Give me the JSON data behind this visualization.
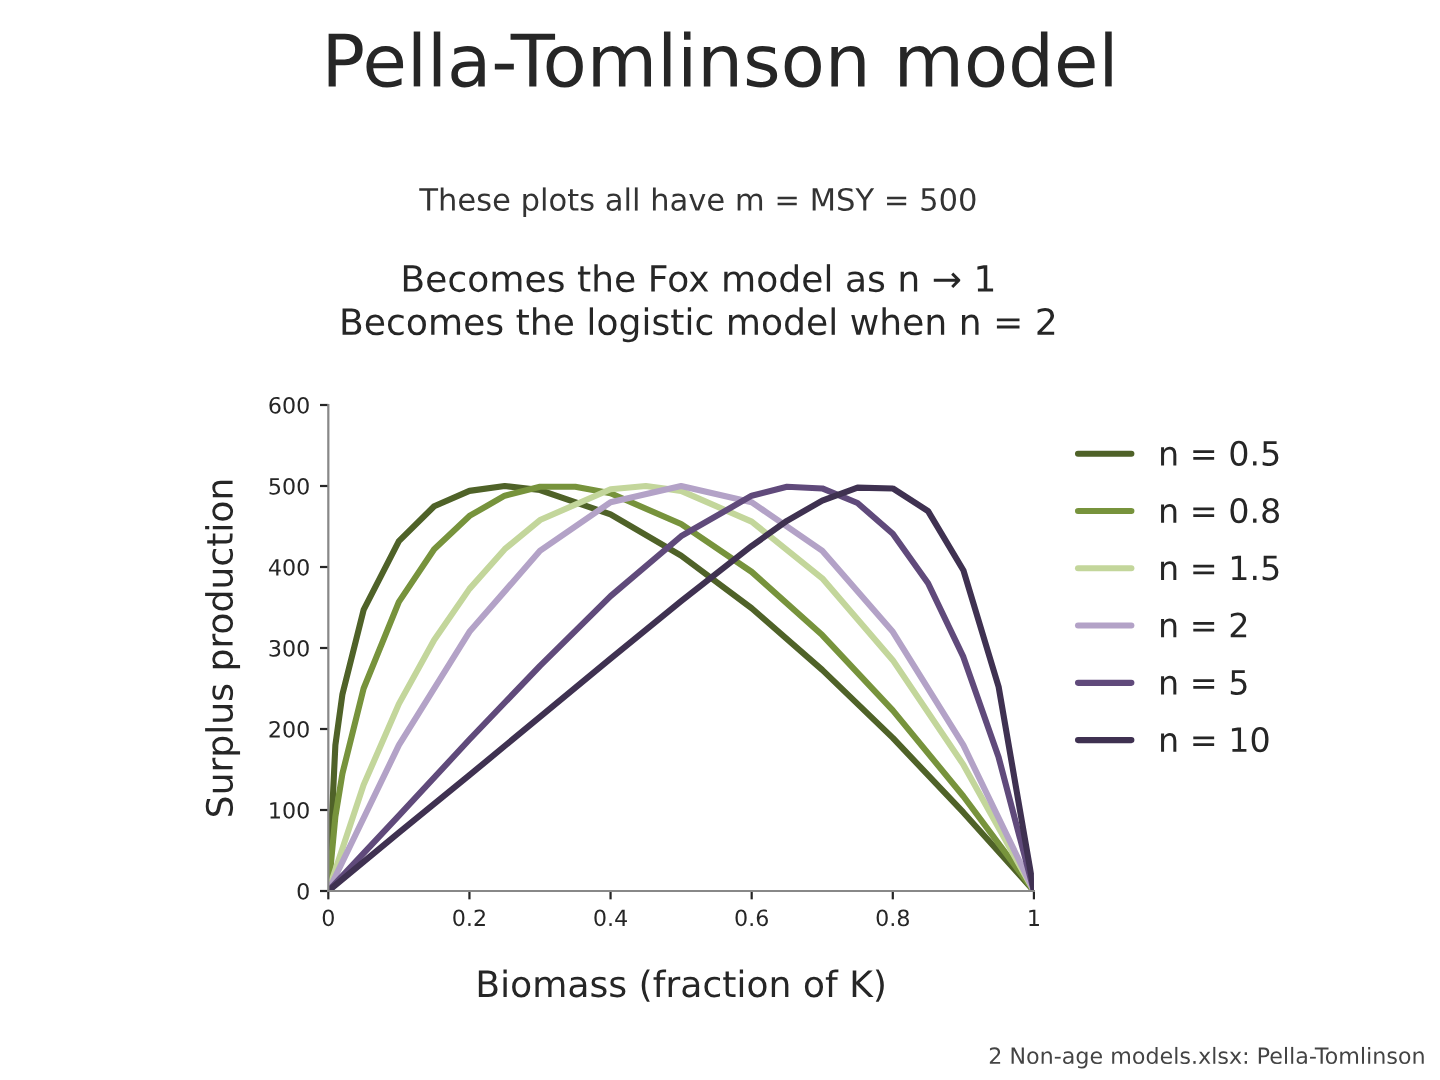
{
  "chart_data": {
    "type": "line",
    "title": "Pella-Tomlinson model",
    "subtitle": "These plots all have m = MSY = 500",
    "annotations": [
      "Becomes the Fox model as n → 1\nBecomes the logistic model when n = 2",
      "2 Non-age models.xlsx: Pella-Tomlinson"
    ],
    "xlabel": "Biomass (fraction of K)",
    "ylabel": "Surplus production",
    "xlim": [
      0,
      1
    ],
    "ylim": [
      0,
      600
    ],
    "xticks": [
      0,
      0.2,
      0.4,
      0.6,
      0.8,
      1
    ],
    "yticks": [
      0,
      100,
      200,
      300,
      400,
      500,
      600
    ],
    "grid": false,
    "legend": "right",
    "marker": "none",
    "line_style": "solid",
    "series": [
      {
        "name": "n = 0.5",
        "color": "#4f6228",
        "x": [
          0,
          0.01,
          0.02,
          0.05,
          0.1,
          0.15,
          0.2,
          0.25,
          0.3,
          0.4,
          0.5,
          0.6,
          0.7,
          0.8,
          0.9,
          1
        ],
        "values": [
          0,
          180,
          243,
          347,
          432,
          475,
          494,
          500,
          495,
          465,
          414,
          349,
          273,
          189,
          97,
          0
        ]
      },
      {
        "name": "n = 0.8",
        "color": "#77933c",
        "x": [
          0,
          0.01,
          0.02,
          0.05,
          0.1,
          0.15,
          0.2,
          0.25,
          0.3,
          0.35,
          0.4,
          0.5,
          0.6,
          0.7,
          0.8,
          0.9,
          1
        ],
        "values": [
          0,
          92,
          145,
          250,
          357,
          422,
          463,
          488,
          499,
          499,
          491,
          453,
          394,
          316,
          223,
          117,
          0
        ]
      },
      {
        "name": "n = 1.5",
        "color": "#c3d69b",
        "x": [
          0,
          0.05,
          0.1,
          0.15,
          0.2,
          0.25,
          0.3,
          0.4,
          0.45,
          0.5,
          0.6,
          0.7,
          0.8,
          0.9,
          1
        ],
        "values": [
          0,
          131,
          231,
          310,
          373,
          422,
          458,
          496,
          500,
          494,
          456,
          386,
          285,
          156,
          0
        ]
      },
      {
        "name": "n = 2",
        "color": "#b3a2c7",
        "x": [
          0,
          0.1,
          0.2,
          0.3,
          0.4,
          0.5,
          0.6,
          0.7,
          0.8,
          0.9,
          1
        ],
        "values": [
          0,
          180,
          320,
          420,
          480,
          500,
          480,
          420,
          320,
          180,
          0
        ]
      },
      {
        "name": "n = 5",
        "color": "#604a7b",
        "x": [
          0,
          0.1,
          0.2,
          0.3,
          0.4,
          0.5,
          0.6,
          0.65,
          0.7,
          0.75,
          0.8,
          0.85,
          0.9,
          0.95,
          1
        ],
        "values": [
          0,
          93,
          187,
          278,
          364,
          438,
          488,
          499,
          497,
          479,
          441,
          380,
          289,
          165,
          0
        ]
      },
      {
        "name": "n = 10",
        "color": "#3f3151",
        "x": [
          0,
          0.1,
          0.2,
          0.3,
          0.4,
          0.5,
          0.6,
          0.65,
          0.7,
          0.75,
          0.8,
          0.85,
          0.9,
          0.95,
          1
        ],
        "values": [
          0,
          72,
          143,
          215,
          287,
          358,
          426,
          457,
          482,
          498,
          497,
          469,
          396,
          252,
          0
        ]
      }
    ]
  }
}
